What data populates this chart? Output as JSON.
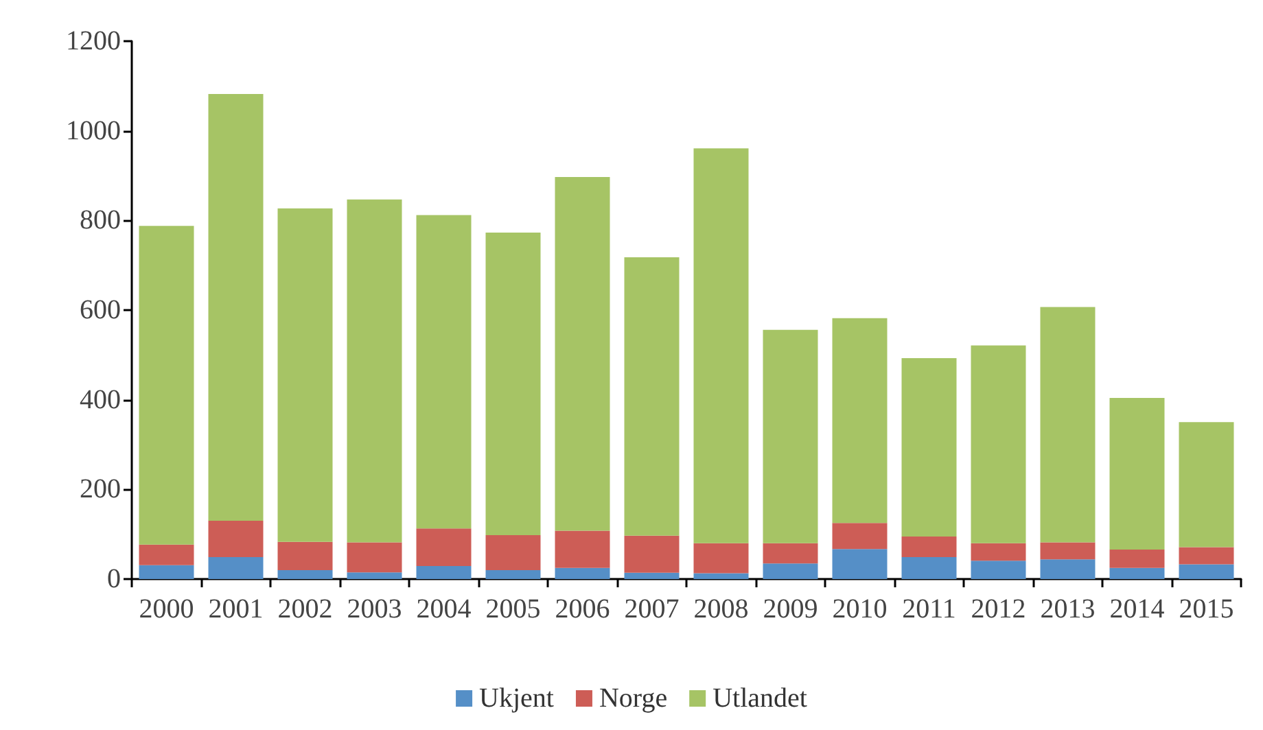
{
  "chart_data": {
    "type": "bar",
    "stacked": true,
    "categories": [
      "2000",
      "2001",
      "2002",
      "2003",
      "2004",
      "2005",
      "2006",
      "2007",
      "2008",
      "2009",
      "2010",
      "2011",
      "2012",
      "2013",
      "2014",
      "2015"
    ],
    "series": [
      {
        "name": "Ukjent",
        "color": "#558fc7",
        "values": [
          31,
          49,
          20,
          15,
          29,
          20,
          25,
          14,
          13,
          35,
          67,
          49,
          41,
          44,
          25,
          33
        ]
      },
      {
        "name": "Norge",
        "color": "#cd5d56",
        "values": [
          46,
          81,
          63,
          67,
          84,
          78,
          83,
          83,
          67,
          45,
          58,
          46,
          39,
          38,
          41,
          38
        ]
      },
      {
        "name": "Utlandet",
        "color": "#a6c465",
        "values": [
          711,
          952,
          744,
          765,
          699,
          675,
          789,
          621,
          881,
          476,
          457,
          398,
          441,
          525,
          338,
          279
        ]
      }
    ],
    "ylim": [
      0,
      1200
    ],
    "yticks": [
      0,
      200,
      400,
      600,
      800,
      1000,
      1200
    ],
    "grid": false,
    "legend": "bottom"
  }
}
